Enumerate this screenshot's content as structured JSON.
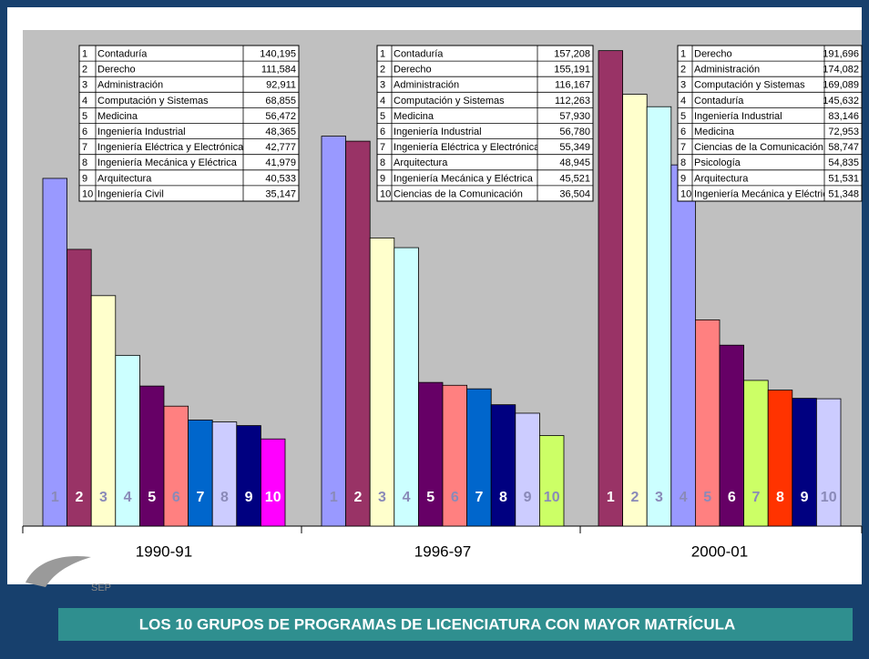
{
  "chart_data": {
    "type": "bar",
    "title": "LOS 10 GRUPOS DE PROGRAMAS DE LICENCIATURA CON MAYOR MATRÍCULA",
    "logo_text": "SEP",
    "ylim": [
      0,
      200000
    ],
    "groups": [
      {
        "name": "1990-91",
        "ranks": [
          1,
          2,
          3,
          4,
          5,
          6,
          7,
          8,
          9,
          10
        ],
        "categories": [
          "Contaduría",
          "Derecho",
          "Administración",
          "Computación y Sistemas",
          "Medicina",
          "Ingeniería Industrial",
          "Ingeniería Eléctrica y Electrónica",
          "Ingeniería Mecánica y Eléctrica",
          "Arquitectura",
          "Ingeniería Civil"
        ],
        "values": [
          140195,
          111584,
          92911,
          68855,
          56472,
          48365,
          42777,
          41979,
          40533,
          35147
        ],
        "value_labels": [
          "140,195",
          "111,584",
          "92,911",
          "68,855",
          "56,472",
          "48,365",
          "42,777",
          "41,979",
          "40,533",
          "35,147"
        ],
        "colors": [
          "#9999ff",
          "#993366",
          "#ffffcc",
          "#ccffff",
          "#660066",
          "#ff8080",
          "#0066cc",
          "#ccccff",
          "#000080",
          "#ff00ff"
        ]
      },
      {
        "name": "1996-97",
        "ranks": [
          1,
          2,
          3,
          4,
          5,
          6,
          7,
          8,
          9,
          10
        ],
        "categories": [
          "Contaduría",
          "Derecho",
          "Administración",
          "Computación y Sistemas",
          "Medicina",
          "Ingeniería Industrial",
          "Ingeniería Eléctrica y Electrónica",
          "Arquitectura",
          "Ingeniería Mecánica y Eléctrica",
          "Ciencias de la Comunicación"
        ],
        "values": [
          157208,
          155191,
          116167,
          112263,
          57930,
          56780,
          55349,
          48945,
          45521,
          36504
        ],
        "value_labels": [
          "157,208",
          "155,191",
          "116,167",
          "112,263",
          "57,930",
          "56,780",
          "55,349",
          "48,945",
          "45,521",
          "36,504"
        ],
        "colors": [
          "#9999ff",
          "#993366",
          "#ffffcc",
          "#ccffff",
          "#660066",
          "#ff8080",
          "#0066cc",
          "#000080",
          "#ccccff",
          "#ccff66"
        ]
      },
      {
        "name": "2000-01",
        "ranks": [
          1,
          2,
          3,
          4,
          5,
          6,
          7,
          8,
          9,
          10
        ],
        "categories": [
          "Derecho",
          "Administración",
          "Computación y Sistemas",
          "Contaduría",
          "Ingeniería Industrial",
          "Medicina",
          "Ciencias de la Comunicación",
          "Psicología",
          "Arquitectura",
          "Ingeniería Mecánica y Eléctrica"
        ],
        "values": [
          191696,
          174082,
          169089,
          145632,
          83146,
          72953,
          58747,
          54835,
          51531,
          51348
        ],
        "value_labels": [
          "191,696",
          "174,082",
          "169,089",
          "145,632",
          "83,146",
          "72,953",
          "58,747",
          "54,835",
          "51,531",
          "51,348"
        ],
        "colors": [
          "#993366",
          "#ffffcc",
          "#ccffff",
          "#9999ff",
          "#ff8080",
          "#660066",
          "#ccff66",
          "#ff3300",
          "#000080",
          "#ccccff"
        ]
      }
    ]
  }
}
